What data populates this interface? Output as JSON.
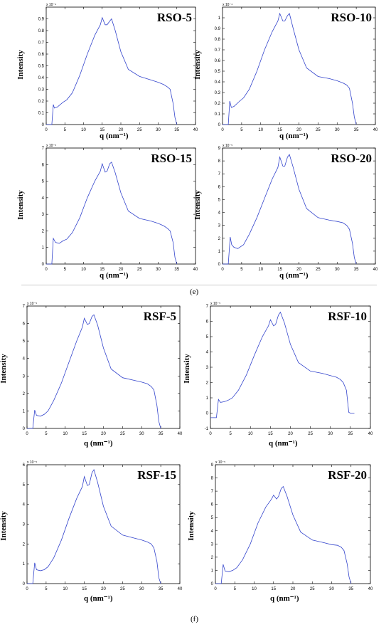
{
  "figure": {
    "group_e_label": "(e)",
    "group_f_label": "(f)"
  },
  "colors": {
    "line": "#3344cc",
    "axis": "#000000"
  },
  "chart_data": [
    {
      "type": "line",
      "title": "RSO-5",
      "xlabel": "q (nm⁻¹)",
      "ylabel": "Intensity",
      "y_exponent_label": "x 10⁻⁴",
      "xlim": [
        0,
        40
      ],
      "ylim": [
        0,
        1
      ],
      "xticks": [
        0,
        5,
        10,
        15,
        20,
        25,
        30,
        35,
        40
      ],
      "yticks": [
        0,
        0.1,
        0.2,
        0.3,
        0.4,
        0.5,
        0.6,
        0.7,
        0.8,
        0.9
      ],
      "ytick_labels": [
        "0",
        "0.1",
        "0.2",
        "0.3",
        "0.4",
        "0.5",
        "0.6",
        "0.7",
        "0.8",
        "0.9"
      ],
      "grid": false,
      "x": [
        0,
        1.5,
        1.9,
        2.2,
        3,
        4.5,
        5.5,
        7,
        9,
        11,
        13,
        14.5,
        15,
        15.8,
        16.3,
        17,
        17.5,
        18.5,
        20,
        22,
        25,
        28,
        30,
        31.5,
        32.5,
        33.2,
        34,
        34.5,
        35
      ],
      "y": [
        0,
        0,
        0.17,
        0.14,
        0.15,
        0.19,
        0.21,
        0.27,
        0.42,
        0.6,
        0.76,
        0.85,
        0.91,
        0.85,
        0.85,
        0.88,
        0.9,
        0.8,
        0.62,
        0.47,
        0.41,
        0.38,
        0.36,
        0.34,
        0.32,
        0.3,
        0.18,
        0.06,
        0
      ]
    },
    {
      "type": "line",
      "title": "RSO-10",
      "xlabel": "q (nm⁻¹)",
      "ylabel": "Intensity",
      "y_exponent_label": "x 10⁻⁴",
      "xlim": [
        0,
        40
      ],
      "ylim": [
        0,
        1.1
      ],
      "xticks": [
        0,
        5,
        10,
        15,
        20,
        25,
        30,
        35,
        40
      ],
      "yticks": [
        0,
        0.1,
        0.2,
        0.3,
        0.4,
        0.5,
        0.6,
        0.7,
        0.8,
        0.9,
        1
      ],
      "ytick_labels": [
        "0",
        "0.1",
        "0.2",
        "0.3",
        "0.4",
        "0.5",
        "0.6",
        "0.7",
        "0.8",
        "0.9",
        "1"
      ],
      "grid": false,
      "x": [
        0,
        1.5,
        1.9,
        2.3,
        3,
        4.5,
        5.5,
        7,
        9,
        11,
        13,
        14.5,
        15,
        15.8,
        16.3,
        17,
        17.5,
        18.5,
        20,
        22,
        25,
        28,
        30,
        31.5,
        32.5,
        33.2,
        34,
        34.5,
        35
      ],
      "y": [
        0,
        0,
        0.22,
        0.16,
        0.17,
        0.22,
        0.25,
        0.33,
        0.5,
        0.7,
        0.87,
        0.97,
        1.04,
        0.97,
        0.97,
        1.02,
        1.04,
        0.9,
        0.7,
        0.53,
        0.45,
        0.43,
        0.41,
        0.39,
        0.37,
        0.34,
        0.2,
        0.07,
        0
      ]
    },
    {
      "type": "line",
      "title": "RSO-15",
      "xlabel": "q (nm⁻¹)",
      "ylabel": "Intensity",
      "y_exponent_label": "x 10⁻⁵",
      "xlim": [
        0,
        40
      ],
      "ylim": [
        0,
        7
      ],
      "xticks": [
        0,
        5,
        10,
        15,
        20,
        25,
        30,
        35,
        40
      ],
      "yticks": [
        0,
        1,
        2,
        3,
        4,
        5,
        6,
        7
      ],
      "ytick_labels": [
        "0",
        "1",
        "2",
        "3",
        "4",
        "5",
        "6",
        "7"
      ],
      "grid": false,
      "x": [
        0,
        1.5,
        1.9,
        2.5,
        3.5,
        4.5,
        5.5,
        7,
        9,
        11,
        13,
        14.5,
        15,
        15.8,
        16.3,
        17,
        17.5,
        18.5,
        20,
        22,
        25,
        28,
        30,
        31.5,
        32.5,
        33.2,
        34,
        34.5,
        35
      ],
      "y": [
        0,
        0,
        1.55,
        1.3,
        1.25,
        1.4,
        1.5,
        1.9,
        2.8,
        4,
        5,
        5.6,
        6.05,
        5.55,
        5.6,
        6.05,
        6.15,
        5.5,
        4.3,
        3.2,
        2.75,
        2.6,
        2.45,
        2.3,
        2.15,
        2.0,
        1.3,
        0.4,
        0
      ]
    },
    {
      "type": "line",
      "title": "RSO-20",
      "xlabel": "q (nm⁻¹)",
      "ylabel": "Intensity",
      "y_exponent_label": "x 10⁻⁵",
      "xlim": [
        0,
        40
      ],
      "ylim": [
        0,
        9
      ],
      "xticks": [
        0,
        5,
        10,
        15,
        20,
        25,
        30,
        35,
        40
      ],
      "yticks": [
        0,
        1,
        2,
        3,
        4,
        5,
        6,
        7,
        8,
        9
      ],
      "ytick_labels": [
        "0",
        "1",
        "2",
        "3",
        "4",
        "5",
        "6",
        "7",
        "8",
        "9"
      ],
      "grid": false,
      "x": [
        0,
        1.5,
        2,
        2.4,
        3,
        4,
        5.5,
        7,
        9,
        11,
        13,
        14.5,
        15,
        15.8,
        16.3,
        17,
        17.5,
        18.5,
        20,
        22,
        25,
        28,
        30,
        31.5,
        32.5,
        33.2,
        34,
        34.5,
        35
      ],
      "y": [
        0,
        0,
        2.1,
        1.5,
        1.3,
        1.2,
        1.5,
        2.3,
        3.6,
        5.1,
        6.6,
        7.5,
        8.3,
        7.6,
        7.6,
        8.3,
        8.5,
        7.5,
        5.8,
        4.3,
        3.6,
        3.4,
        3.3,
        3.2,
        3.0,
        2.7,
        1.6,
        0.5,
        0
      ]
    },
    {
      "type": "line",
      "title": "RSF-5",
      "xlabel": "q (nm⁻¹)",
      "ylabel": "Intensity",
      "y_exponent_label": "x 10⁻⁵",
      "xlim": [
        0,
        40
      ],
      "ylim": [
        0,
        7
      ],
      "xticks": [
        0,
        5,
        10,
        15,
        20,
        25,
        30,
        35,
        40
      ],
      "yticks": [
        0,
        1,
        2,
        3,
        4,
        5,
        6,
        7
      ],
      "ytick_labels": [
        "0",
        "1",
        "2",
        "3",
        "4",
        "5",
        "6",
        "7"
      ],
      "grid": false,
      "x": [
        0,
        1.5,
        2,
        2.5,
        3.5,
        4.5,
        5.5,
        7,
        9,
        11,
        13,
        14.5,
        15,
        15.8,
        16.3,
        17,
        17.5,
        18.5,
        20,
        22,
        25,
        28,
        30,
        31.5,
        32.5,
        33.2,
        34,
        34.5,
        35
      ],
      "y": [
        0,
        0,
        1.05,
        0.75,
        0.7,
        0.8,
        1.0,
        1.6,
        2.6,
        3.8,
        5.0,
        5.8,
        6.3,
        5.95,
        6.0,
        6.4,
        6.5,
        5.9,
        4.6,
        3.4,
        2.9,
        2.75,
        2.65,
        2.55,
        2.4,
        2.2,
        1.3,
        0.4,
        0
      ]
    },
    {
      "type": "line",
      "title": "RSF-10",
      "xlabel": "q (nm⁻¹)",
      "ylabel": "Intensity",
      "y_exponent_label": "x 10⁻⁵",
      "xlim": [
        0,
        40
      ],
      "ylim": [
        -1,
        7
      ],
      "xticks": [
        0,
        5,
        10,
        15,
        20,
        25,
        30,
        35,
        40
      ],
      "yticks": [
        -1,
        0,
        1,
        2,
        3,
        4,
        5,
        6,
        7
      ],
      "ytick_labels": [
        "-1",
        "0",
        "1",
        "2",
        "3",
        "4",
        "5",
        "6",
        "7"
      ],
      "grid": false,
      "x": [
        0,
        1.5,
        2,
        2.5,
        3.5,
        4.5,
        5.5,
        7,
        9,
        11,
        13,
        14.5,
        15,
        15.8,
        16.3,
        17,
        17.5,
        18.5,
        20,
        22,
        25,
        28,
        30,
        31.5,
        32.5,
        33.2,
        34,
        34.6,
        35,
        36
      ],
      "y": [
        -0.3,
        -0.3,
        0.9,
        0.7,
        0.75,
        0.85,
        1.0,
        1.5,
        2.5,
        3.8,
        5.0,
        5.7,
        6.1,
        5.7,
        5.8,
        6.4,
        6.6,
        5.9,
        4.5,
        3.3,
        2.75,
        2.6,
        2.45,
        2.35,
        2.2,
        2.0,
        1.5,
        0.05,
        0,
        0
      ]
    },
    {
      "type": "line",
      "title": "RSF-15",
      "xlabel": "q (nm⁻¹)",
      "ylabel": "Intensity",
      "y_exponent_label": "x 10⁻⁵",
      "xlim": [
        0,
        40
      ],
      "ylim": [
        0,
        6
      ],
      "xticks": [
        0,
        5,
        10,
        15,
        20,
        25,
        30,
        35,
        40
      ],
      "yticks": [
        0,
        1,
        2,
        3,
        4,
        5,
        6
      ],
      "ytick_labels": [
        "0",
        "1",
        "2",
        "3",
        "4",
        "5",
        "6"
      ],
      "grid": false,
      "x": [
        0,
        1.5,
        2,
        2.5,
        3.5,
        4.5,
        5.5,
        7,
        9,
        11,
        13,
        14.5,
        15,
        15.8,
        16.3,
        17,
        17.5,
        18.5,
        20,
        22,
        25,
        28,
        30,
        31.5,
        32.5,
        33.2,
        34,
        34.5,
        35
      ],
      "y": [
        0,
        0,
        1.05,
        0.7,
        0.65,
        0.7,
        0.85,
        1.3,
        2.2,
        3.3,
        4.3,
        4.9,
        5.4,
        4.95,
        5.0,
        5.6,
        5.75,
        5.1,
        3.9,
        2.9,
        2.45,
        2.3,
        2.2,
        2.1,
        2.0,
        1.8,
        1.1,
        0.3,
        0
      ]
    },
    {
      "type": "line",
      "title": "RSF-20",
      "xlabel": "q (nm⁻¹)",
      "ylabel": "Intensity",
      "y_exponent_label": "x 10⁻⁵",
      "xlim": [
        0,
        40
      ],
      "ylim": [
        0,
        9
      ],
      "xticks": [
        0,
        5,
        10,
        15,
        20,
        25,
        30,
        35,
        40
      ],
      "yticks": [
        0,
        1,
        2,
        3,
        4,
        5,
        6,
        7,
        8,
        9
      ],
      "ytick_labels": [
        "0",
        "1",
        "2",
        "3",
        "4",
        "5",
        "6",
        "7",
        "8",
        "9"
      ],
      "grid": false,
      "x": [
        0,
        1.5,
        2,
        2.5,
        3.5,
        4.5,
        5.5,
        7,
        9,
        11,
        13,
        14.5,
        15,
        15.8,
        16.3,
        17,
        17.5,
        18.5,
        20,
        22,
        25,
        28,
        30,
        31.5,
        32.5,
        33.2,
        34,
        34.5,
        35
      ],
      "y": [
        0,
        0,
        1.45,
        0.95,
        0.9,
        1.0,
        1.2,
        1.8,
        3.0,
        4.6,
        5.8,
        6.4,
        6.7,
        6.4,
        6.6,
        7.2,
        7.35,
        6.6,
        5.2,
        3.9,
        3.3,
        3.1,
        2.95,
        2.9,
        2.75,
        2.5,
        1.5,
        0.5,
        0
      ]
    }
  ]
}
